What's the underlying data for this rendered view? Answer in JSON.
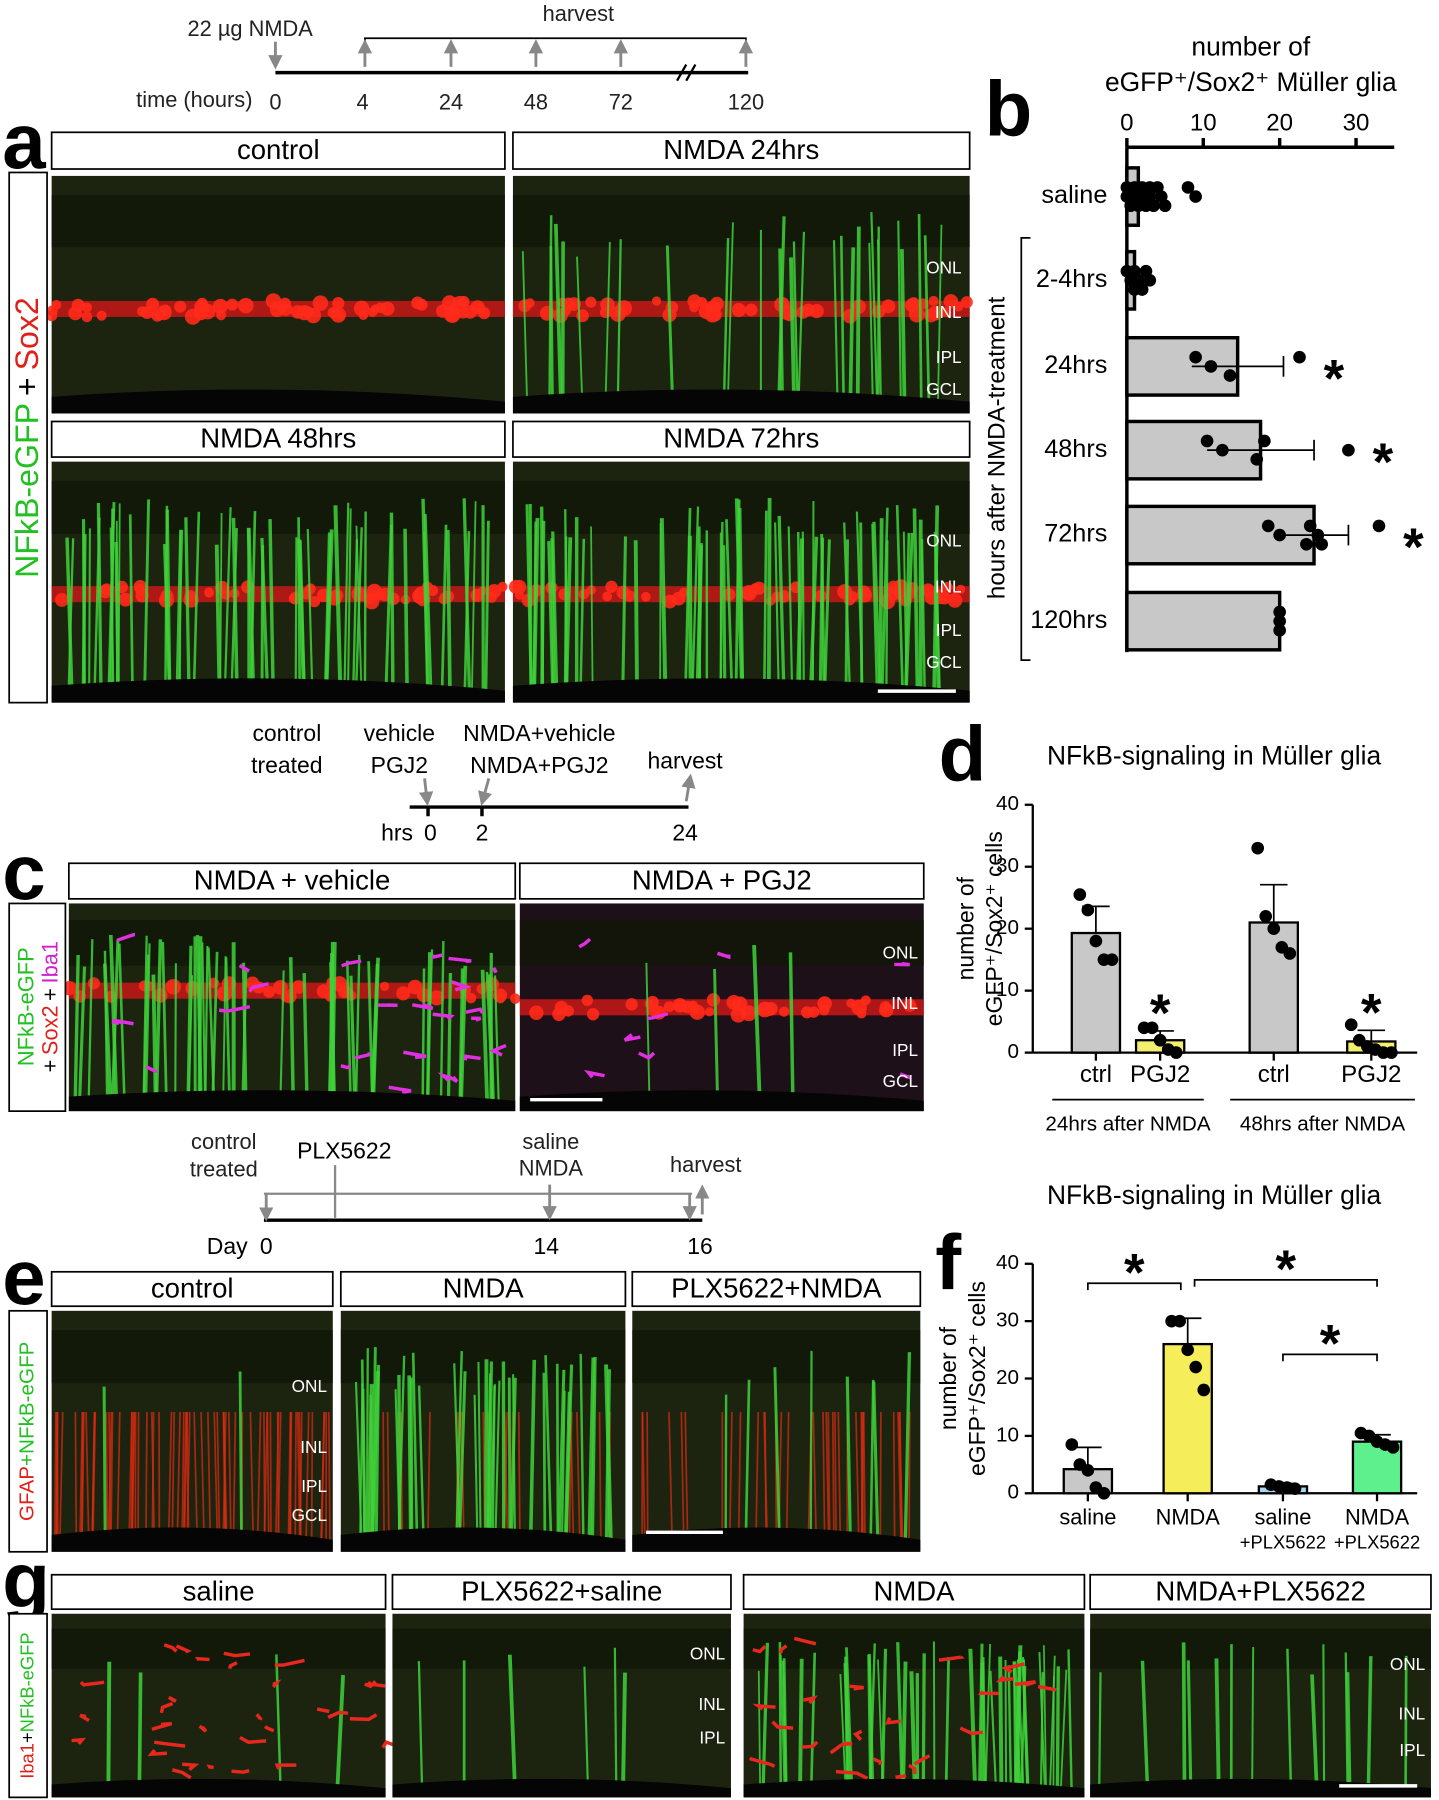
{
  "panel_letters": [
    "a",
    "b",
    "c",
    "d",
    "e",
    "f",
    "g"
  ],
  "layers": [
    "ONL",
    "INL",
    "IPL",
    "GCL"
  ],
  "timeline_a": {
    "dose": "22 µg NMDA",
    "harvest": "harvest",
    "axis_label": "time (hours)",
    "ticks": [
      "0",
      "4",
      "24",
      "48",
      "72",
      "120"
    ]
  },
  "panel_a": {
    "headers": [
      "control",
      "NMDA 24hrs",
      "NMDA 48hrs",
      "NMDA 72hrs"
    ],
    "stain": [
      "NFkB-eGFP",
      "+",
      "Sox2"
    ]
  },
  "timeline_c": {
    "groups": [
      "control",
      "treated"
    ],
    "pre": [
      "vehicle",
      "PGJ2"
    ],
    "post": [
      "NMDA+vehicle",
      "NMDA+PGJ2"
    ],
    "harvest": "harvest",
    "axis_label": "hrs",
    "ticks": [
      "0",
      "2",
      "24"
    ]
  },
  "panel_c": {
    "headers": [
      "NMDA + vehicle",
      "NMDA + PGJ2"
    ],
    "stain": [
      "NFkB-eGFP",
      "+",
      "Sox2",
      "+",
      "Iba1"
    ]
  },
  "timeline_e": {
    "groups": [
      "control",
      "treated"
    ],
    "drug": "PLX5622",
    "injection": [
      "saline",
      "NMDA"
    ],
    "harvest": "harvest",
    "axis_label": "Day",
    "ticks": [
      "0",
      "14",
      "16"
    ]
  },
  "panel_e": {
    "headers": [
      "control",
      "NMDA",
      "PLX5622+NMDA"
    ],
    "stain": [
      "GFAP",
      "+NFkB-eGFP"
    ]
  },
  "panel_g": {
    "headers": [
      "saline",
      "PLX5622+saline",
      "NMDA",
      "NMDA+PLX5622"
    ],
    "stain": [
      "Iba1",
      "+",
      "NFkB-eGFP"
    ]
  },
  "chart_data": [
    {
      "type": "bar",
      "orientation": "horizontal",
      "title": [
        "number of",
        "eGFP⁺/Sox2⁺ Müller glia"
      ],
      "ylabel": "hours after NMDA-treatment",
      "categories": [
        "saline",
        "2-4hrs",
        "24hrs",
        "48hrs",
        "72hrs",
        "120hrs"
      ],
      "values": [
        1.5,
        1,
        14.5,
        17.5,
        24.5,
        20
      ],
      "errors": [
        null,
        null,
        6,
        7,
        4.5,
        null
      ],
      "points": [
        [
          0,
          0,
          0.5,
          1,
          1,
          1.5,
          2,
          2,
          2.5,
          3,
          3,
          3.5,
          4,
          4.5,
          5,
          8,
          9
        ],
        [
          0,
          0.5,
          1,
          1,
          1.5,
          2,
          2.5,
          3
        ],
        [
          9,
          11,
          13.5,
          22.6
        ],
        [
          10.5,
          12.5,
          17,
          18,
          29
        ],
        [
          18.5,
          20,
          23.5,
          24,
          25,
          25.5,
          33
        ],
        [
          20,
          20,
          20
        ]
      ],
      "significance": [
        null,
        null,
        "*",
        "*",
        "*",
        null
      ],
      "color": "#c8c8c8",
      "xlim": [
        0,
        35
      ],
      "xticks": [
        0,
        10,
        20,
        30
      ]
    },
    {
      "type": "bar",
      "title": "NFkB-signaling in Müller glia",
      "ylabel": [
        "number of",
        "eGFP⁺/Sox2⁺ cells"
      ],
      "categories": [
        "ctrl",
        "PGJ2",
        "ctrl",
        "PGJ2"
      ],
      "groups": [
        {
          "label": "24hrs after NMDA",
          "span": 2
        },
        {
          "label": "48hrs after NMDA",
          "span": 2
        }
      ],
      "values": [
        19.3,
        2,
        21,
        1.8
      ],
      "errors": [
        4.3,
        1.5,
        6.1,
        1.8
      ],
      "points": [
        [
          25.5,
          23,
          18,
          15,
          15
        ],
        [
          4,
          4,
          2,
          0.5,
          0
        ],
        [
          33,
          22,
          20,
          17,
          16
        ],
        [
          4.5,
          2,
          1,
          0.5,
          0,
          0
        ]
      ],
      "colors": [
        "#c8c8c8",
        "#f4f06e",
        "#c8c8c8",
        "#f4f06e"
      ],
      "significance": [
        null,
        "*",
        null,
        "*"
      ],
      "ylim": [
        0,
        40
      ],
      "yticks": [
        0,
        10,
        20,
        30,
        40
      ]
    },
    {
      "type": "bar",
      "title": "NFkB-signaling in Müller glia",
      "ylabel": [
        "number of",
        "eGFP⁺/Sox2⁺ cells"
      ],
      "categories": [
        [
          "saline"
        ],
        [
          "NMDA"
        ],
        [
          "saline",
          "+PLX5622"
        ],
        [
          "NMDA",
          "+PLX5622"
        ]
      ],
      "values": [
        4.2,
        26,
        1.2,
        9
      ],
      "errors": [
        3.8,
        4.5,
        0.5,
        1.2
      ],
      "points": [
        [
          8.5,
          5,
          4,
          1,
          0
        ],
        [
          30,
          30,
          25,
          22,
          18
        ],
        [
          1.5,
          1.2,
          1,
          0.8
        ],
        [
          10.5,
          10,
          9,
          8.5,
          8
        ]
      ],
      "colors": [
        "#c8c8c8",
        "#f5ee5a",
        "#a8d8f0",
        "#5ef08c"
      ],
      "brackets": [
        {
          "groups": [
            0,
            1
          ],
          "label": "*"
        },
        {
          "groups": [
            1,
            3
          ],
          "label": "*"
        },
        {
          "groups": [
            2,
            3
          ],
          "label": "*"
        }
      ],
      "ylim": [
        0,
        40
      ],
      "yticks": [
        0,
        10,
        20,
        30,
        40
      ]
    }
  ]
}
